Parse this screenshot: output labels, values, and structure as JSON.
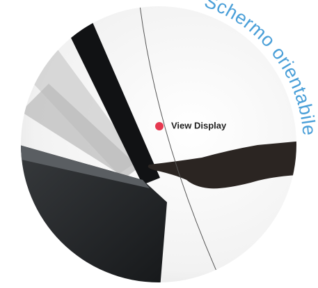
{
  "heading": "Schermo orientabile",
  "hotspot": {
    "label": "View Display"
  }
}
